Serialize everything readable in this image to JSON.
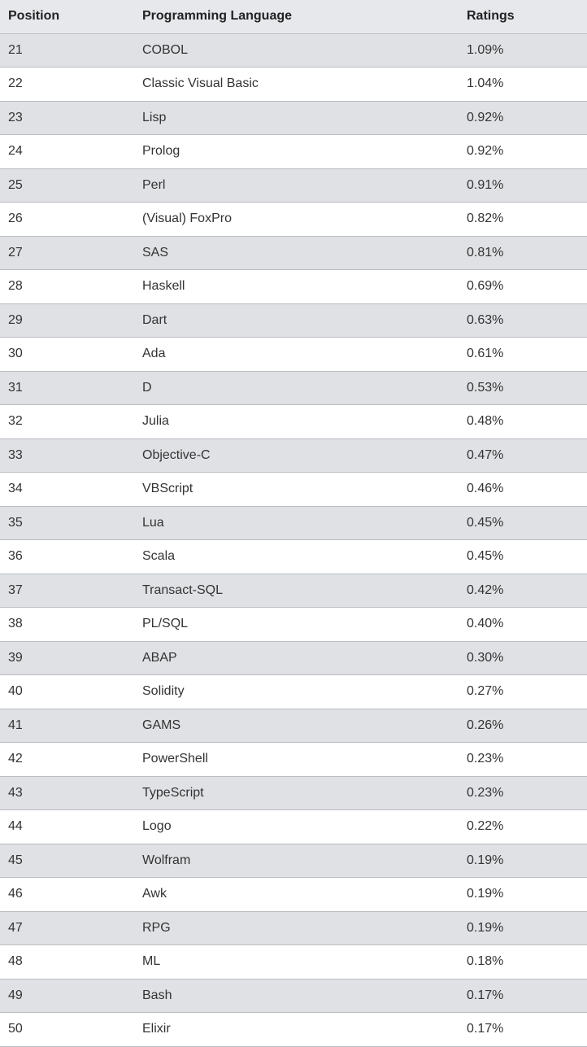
{
  "table": {
    "headers": [
      "Position",
      "Programming Language",
      "Ratings"
    ],
    "rows": [
      {
        "position": "21",
        "language": "COBOL",
        "rating": "1.09%"
      },
      {
        "position": "22",
        "language": "Classic Visual Basic",
        "rating": "1.04%"
      },
      {
        "position": "23",
        "language": "Lisp",
        "rating": "0.92%"
      },
      {
        "position": "24",
        "language": "Prolog",
        "rating": "0.92%"
      },
      {
        "position": "25",
        "language": "Perl",
        "rating": "0.91%"
      },
      {
        "position": "26",
        "language": "(Visual) FoxPro",
        "rating": "0.82%"
      },
      {
        "position": "27",
        "language": "SAS",
        "rating": "0.81%"
      },
      {
        "position": "28",
        "language": "Haskell",
        "rating": "0.69%"
      },
      {
        "position": "29",
        "language": "Dart",
        "rating": "0.63%"
      },
      {
        "position": "30",
        "language": "Ada",
        "rating": "0.61%"
      },
      {
        "position": "31",
        "language": "D",
        "rating": "0.53%"
      },
      {
        "position": "32",
        "language": "Julia",
        "rating": "0.48%"
      },
      {
        "position": "33",
        "language": "Objective-C",
        "rating": "0.47%"
      },
      {
        "position": "34",
        "language": "VBScript",
        "rating": "0.46%"
      },
      {
        "position": "35",
        "language": "Lua",
        "rating": "0.45%"
      },
      {
        "position": "36",
        "language": "Scala",
        "rating": "0.45%"
      },
      {
        "position": "37",
        "language": "Transact-SQL",
        "rating": "0.42%"
      },
      {
        "position": "38",
        "language": "PL/SQL",
        "rating": "0.40%"
      },
      {
        "position": "39",
        "language": "ABAP",
        "rating": "0.30%"
      },
      {
        "position": "40",
        "language": "Solidity",
        "rating": "0.27%"
      },
      {
        "position": "41",
        "language": "GAMS",
        "rating": "0.26%"
      },
      {
        "position": "42",
        "language": "PowerShell",
        "rating": "0.23%"
      },
      {
        "position": "43",
        "language": "TypeScript",
        "rating": "0.23%"
      },
      {
        "position": "44",
        "language": "Logo",
        "rating": "0.22%"
      },
      {
        "position": "45",
        "language": "Wolfram",
        "rating": "0.19%"
      },
      {
        "position": "46",
        "language": "Awk",
        "rating": "0.19%"
      },
      {
        "position": "47",
        "language": "RPG",
        "rating": "0.19%"
      },
      {
        "position": "48",
        "language": "ML",
        "rating": "0.18%"
      },
      {
        "position": "49",
        "language": "Bash",
        "rating": "0.17%"
      },
      {
        "position": "50",
        "language": "Elixir",
        "rating": "0.17%"
      }
    ]
  }
}
